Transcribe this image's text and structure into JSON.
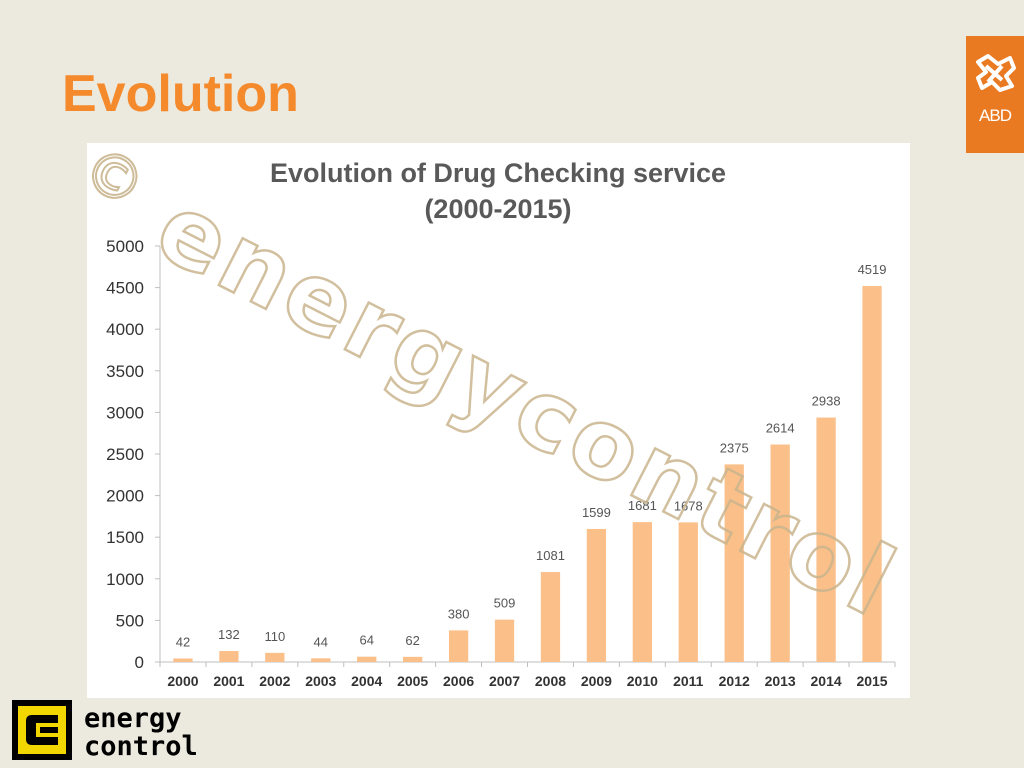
{
  "slide": {
    "title": "Evolution",
    "logo_text": "ABD",
    "brand_text_line1": "energy",
    "brand_text_line2": "control",
    "watermark_text": "energycontrol",
    "watermark_symbol": "©"
  },
  "colors": {
    "background": "#ece9df",
    "title": "#f48a2c",
    "bar": "#fbbf8a",
    "abd_logo": "#ea7a22"
  },
  "chart_data": {
    "type": "bar",
    "title": [
      "Evolution of Drug Checking service",
      "(2000-2015)"
    ],
    "xlabel": "",
    "ylabel": "",
    "ylim": [
      0,
      5000
    ],
    "yticks": [
      0,
      500,
      1000,
      1500,
      2000,
      2500,
      3000,
      3500,
      4000,
      4500,
      5000
    ],
    "categories": [
      "2000",
      "2001",
      "2002",
      "2003",
      "2004",
      "2005",
      "2006",
      "2007",
      "2008",
      "2009",
      "2010",
      "2011",
      "2012",
      "2013",
      "2014",
      "2015"
    ],
    "values": [
      42,
      132,
      110,
      44,
      64,
      62,
      380,
      509,
      1081,
      1599,
      1681,
      1678,
      2375,
      2614,
      2938,
      4519
    ],
    "grid": false,
    "legend": "none",
    "data_labels": true
  }
}
